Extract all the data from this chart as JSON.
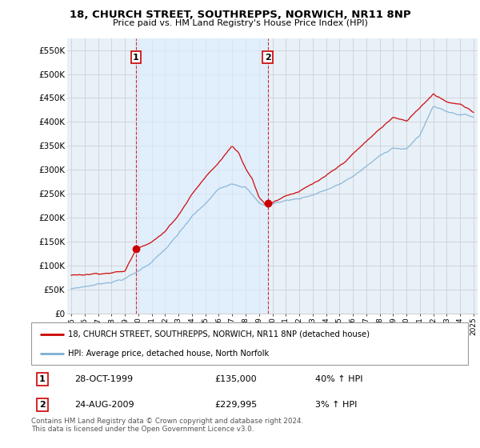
{
  "title": "18, CHURCH STREET, SOUTHREPPS, NORWICH, NR11 8NP",
  "subtitle": "Price paid vs. HM Land Registry's House Price Index (HPI)",
  "legend_line1": "18, CHURCH STREET, SOUTHREPPS, NORWICH, NR11 8NP (detached house)",
  "legend_line2": "HPI: Average price, detached house, North Norfolk",
  "annotation1_date": "28-OCT-1999",
  "annotation1_price": "£135,000",
  "annotation1_hpi": "40% ↑ HPI",
  "annotation2_date": "24-AUG-2009",
  "annotation2_price": "£229,995",
  "annotation2_hpi": "3% ↑ HPI",
  "footer": "Contains HM Land Registry data © Crown copyright and database right 2024.\nThis data is licensed under the Open Government Licence v3.0.",
  "sale1_x": 1999.83,
  "sale1_y": 135000,
  "sale2_x": 2009.65,
  "sale2_y": 229995,
  "ylim": [
    0,
    575000
  ],
  "xlim_start": 1994.7,
  "xlim_end": 2025.3,
  "red_color": "#cc0000",
  "blue_color": "#7bafd4",
  "shade_color": "#ddeeff",
  "grid_color": "#cccccc",
  "bg_color": "#e8f0f8"
}
